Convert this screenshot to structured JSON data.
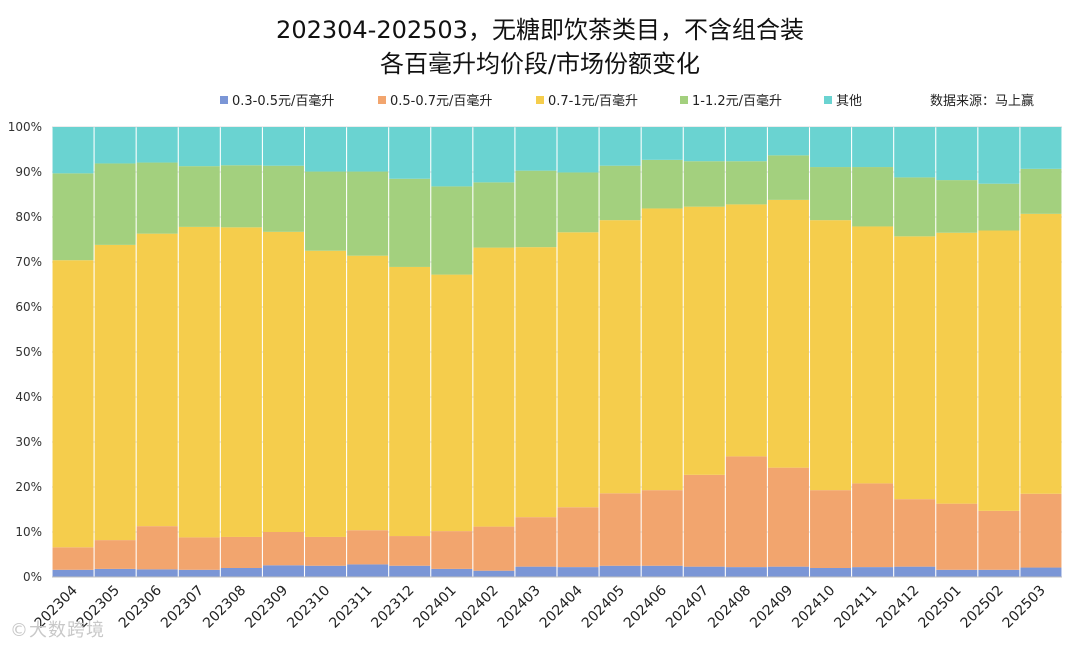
{
  "title_line1": "202304-202503，无糖即饮茶类目，不含组合装",
  "title_line2": "各百毫升均价段/市场份额变化",
  "source": "数据来源：马上赢",
  "watermark": "©大数跨境",
  "chart_data": {
    "type": "bar",
    "stacked": true,
    "percent": true,
    "categories": [
      "202304",
      "202305",
      "202306",
      "202307",
      "202308",
      "202309",
      "202310",
      "202311",
      "202312",
      "202401",
      "202402",
      "202403",
      "202404",
      "202405",
      "202406",
      "202407",
      "202408",
      "202409",
      "202410",
      "202411",
      "202412",
      "202501",
      "202502",
      "202503"
    ],
    "series": [
      {
        "name": "0.3-0.5元/百毫升",
        "color": "#7b96d6",
        "values": [
          1.6,
          1.8,
          1.7,
          1.6,
          2.0,
          2.6,
          2.5,
          2.8,
          2.5,
          1.8,
          1.4,
          2.3,
          2.2,
          2.5,
          2.5,
          2.3,
          2.2,
          2.3,
          2.0,
          2.2,
          2.3,
          1.6,
          1.6,
          2.1
        ]
      },
      {
        "name": "0.5-0.7元/百毫升",
        "color": "#f2a56e",
        "values": [
          5.0,
          6.4,
          9.6,
          7.2,
          6.9,
          7.4,
          6.4,
          7.6,
          6.6,
          8.4,
          9.8,
          11.0,
          13.3,
          16.1,
          16.8,
          20.4,
          24.6,
          22.0,
          17.3,
          18.6,
          15.0,
          14.7,
          13.1,
          16.4
        ]
      },
      {
        "name": "0.7-1元/百毫升",
        "color": "#f5cd4c",
        "values": [
          63.8,
          65.6,
          65.0,
          69.0,
          68.8,
          66.7,
          63.6,
          61.0,
          59.8,
          57.0,
          62.0,
          60.0,
          61.1,
          60.7,
          62.6,
          59.6,
          56.0,
          59.5,
          60.0,
          57.1,
          58.4,
          60.2,
          62.3,
          62.2
        ]
      },
      {
        "name": "1-1.2元/百毫升",
        "color": "#a3d07e",
        "values": [
          19.3,
          18.1,
          15.8,
          13.5,
          13.8,
          14.7,
          17.6,
          18.7,
          19.6,
          19.6,
          14.5,
          17.0,
          13.3,
          12.1,
          10.8,
          10.1,
          9.6,
          9.9,
          11.8,
          13.2,
          13.1,
          11.7,
          10.4,
          10.0
        ]
      },
      {
        "name": "其他",
        "color": "#6ad3d1",
        "values": [
          10.3,
          8.1,
          7.9,
          8.7,
          8.5,
          8.6,
          9.9,
          9.9,
          11.5,
          13.2,
          12.3,
          9.7,
          10.1,
          8.6,
          7.3,
          7.6,
          7.6,
          6.3,
          8.9,
          8.9,
          11.2,
          11.8,
          12.6,
          9.3
        ]
      }
    ],
    "yaxis": {
      "min": 0,
      "max": 100,
      "step": 10,
      "tick_labels": [
        "0%",
        "10%",
        "20%",
        "30%",
        "40%",
        "50%",
        "60%",
        "70%",
        "80%",
        "90%",
        "100%"
      ]
    },
    "xlabel": "",
    "ylabel": "",
    "grid": true,
    "legend_position": "top"
  }
}
